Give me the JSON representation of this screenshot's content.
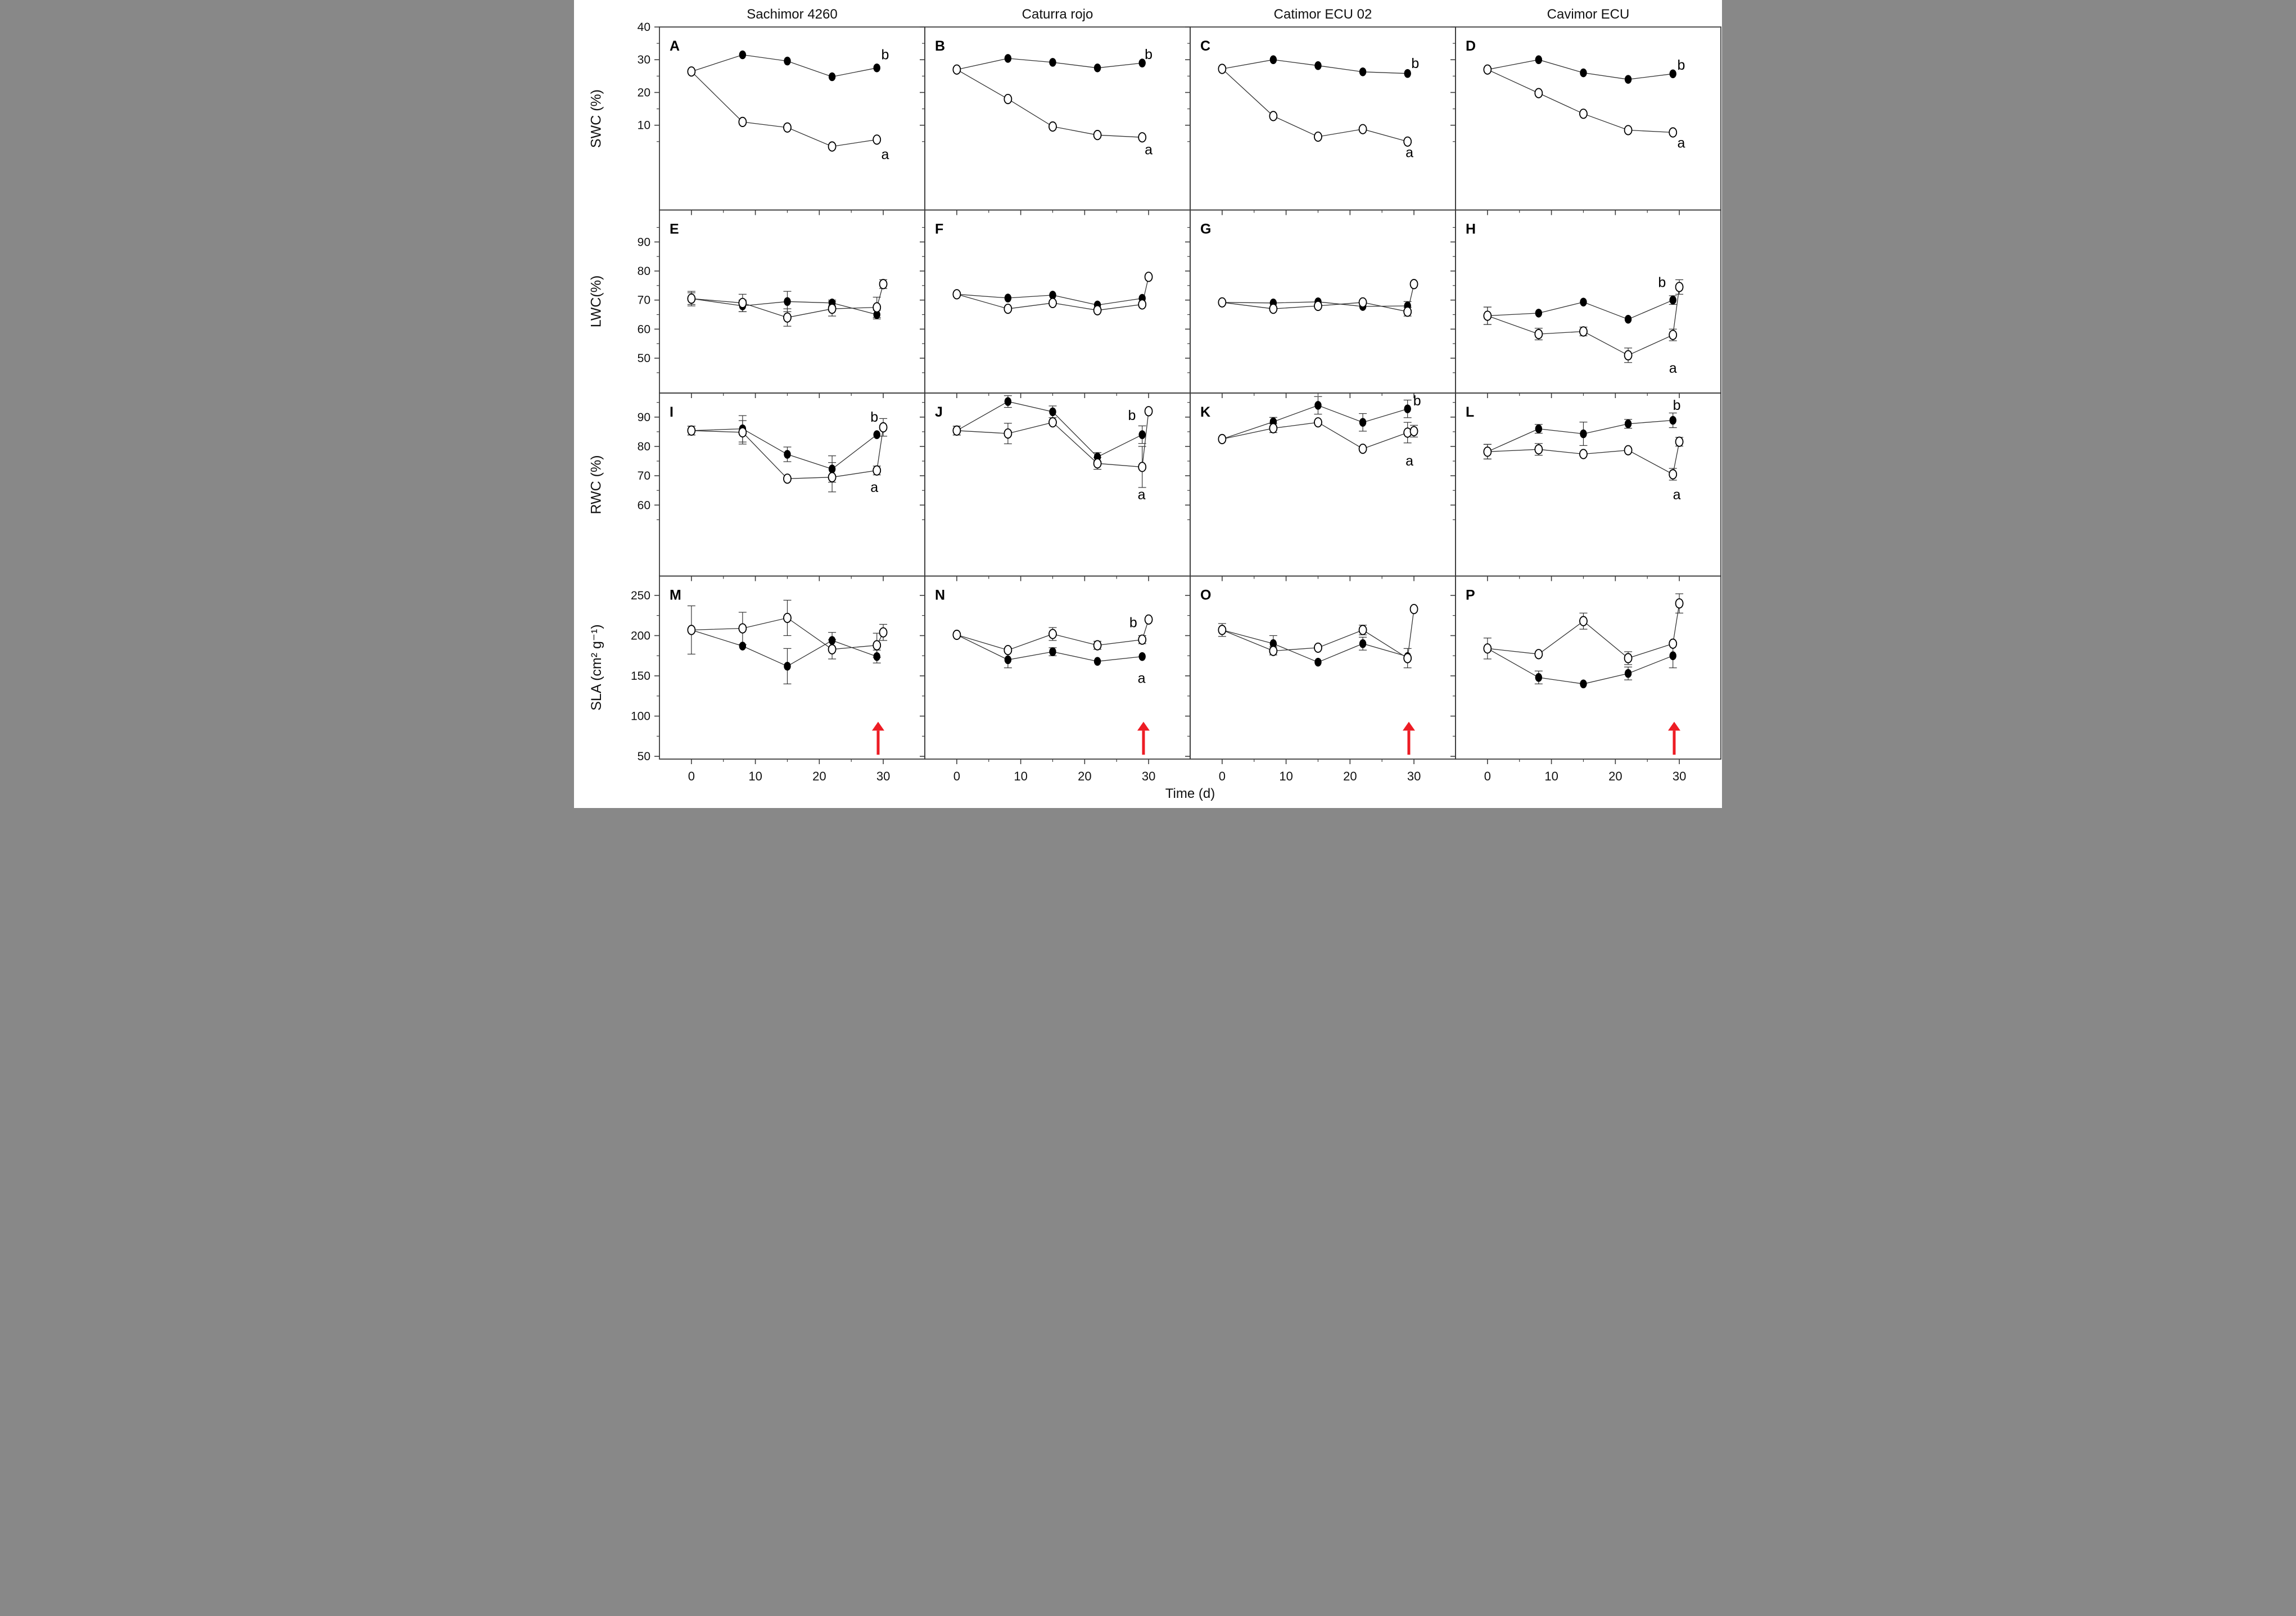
{
  "figure_title": "",
  "xlabel": "Time (d)",
  "column_titles": [
    "Sachimor 4260",
    "Caturra rojo",
    "Catimor ECU 02",
    "Cavimor ECU"
  ],
  "row_axis_labels": [
    "SWC (%)",
    "LWC(%)",
    "RWC (%)",
    "SLA (cm² g⁻¹)"
  ],
  "chart_data": {
    "type": "line",
    "grid": {
      "rows": 4,
      "cols": 4
    },
    "x_days": [
      0,
      8,
      15,
      22,
      29
    ],
    "recovery_day": 30,
    "xticks": [
      0,
      10,
      20,
      30
    ],
    "x_minor_ticks": [
      5,
      15,
      25
    ],
    "xlim": [
      -5,
      36.5
    ],
    "xlabel": "Time (d)",
    "legend": "none visible; filled circles = upper series, open circles = lower series",
    "rows": [
      {
        "label": "SWC (%)",
        "yticks": [
          10,
          20,
          30,
          40
        ],
        "y_minor_ticks": [
          5,
          15,
          25,
          35
        ],
        "ylim": [
          -15.9,
          40
        ]
      },
      {
        "label": "LWC(%)",
        "yticks": [
          50,
          60,
          70,
          80,
          90
        ],
        "y_minor_ticks": [
          45,
          55,
          65,
          75,
          85,
          95
        ],
        "ylim": [
          38,
          101
        ]
      },
      {
        "label": "RWC (%)",
        "yticks": [
          60,
          70,
          80,
          90
        ],
        "y_minor_ticks": [
          55,
          65,
          75,
          85,
          95
        ],
        "ylim": [
          35.8,
          98.2
        ]
      },
      {
        "label": "SLA (cm² g⁻¹)",
        "yticks": [
          50,
          100,
          150,
          200,
          250
        ],
        "y_minor_ticks": [
          75,
          125,
          175,
          225
        ],
        "ylim": [
          46.6,
          274
        ]
      }
    ],
    "style": {
      "line_color": "#333333",
      "frame_color": "#3c3c3c",
      "filled_marker_color": "#000000",
      "open_marker_fill": "#ffffff",
      "arrow_color": "#ed1c24",
      "background": "#ffffff"
    },
    "panels": [
      {
        "id": "A",
        "row": 0,
        "col": 0,
        "filled": {
          "y": [
            26.4,
            31.5,
            29.6,
            24.8,
            27.5
          ],
          "err": [
            0,
            0,
            0,
            0,
            0
          ]
        },
        "open": {
          "y": [
            26.4,
            11.0,
            9.3,
            3.5,
            5.6
          ],
          "err": [
            0,
            0,
            0,
            0,
            0
          ]
        },
        "letters": [
          {
            "t": "b",
            "x": 30.3,
            "y": 31.5
          },
          {
            "t": "a",
            "x": 30.3,
            "y": 1.0
          }
        ]
      },
      {
        "id": "B",
        "row": 0,
        "col": 1,
        "filled": {
          "y": [
            27.0,
            30.4,
            29.2,
            27.5,
            29.0
          ],
          "err": [
            0,
            0,
            0,
            0,
            0
          ]
        },
        "open": {
          "y": [
            27.0,
            18.0,
            9.6,
            7.0,
            6.3
          ],
          "err": [
            0,
            0,
            0,
            0,
            0
          ]
        },
        "letters": [
          {
            "t": "b",
            "x": 30.0,
            "y": 31.6
          },
          {
            "t": "a",
            "x": 30.0,
            "y": 2.5
          }
        ]
      },
      {
        "id": "C",
        "row": 0,
        "col": 2,
        "filled": {
          "y": [
            27.2,
            30.0,
            28.2,
            26.3,
            25.8
          ],
          "err": [
            0,
            0,
            0,
            0,
            0
          ]
        },
        "open": {
          "y": [
            27.2,
            12.8,
            6.5,
            8.8,
            5.0
          ],
          "err": [
            0,
            0,
            0,
            0,
            0
          ]
        },
        "letters": [
          {
            "t": "b",
            "x": 30.2,
            "y": 28.8
          },
          {
            "t": "a",
            "x": 29.3,
            "y": 1.6
          }
        ]
      },
      {
        "id": "D",
        "row": 0,
        "col": 3,
        "filled": {
          "y": [
            27.0,
            30.0,
            26.0,
            24.0,
            25.7
          ],
          "err": [
            0,
            0,
            0,
            0,
            0
          ]
        },
        "open": {
          "y": [
            27.0,
            19.8,
            13.5,
            8.5,
            7.8
          ],
          "err": [
            0,
            0,
            0,
            0,
            0
          ]
        },
        "letters": [
          {
            "t": "b",
            "x": 30.3,
            "y": 28.3
          },
          {
            "t": "a",
            "x": 30.3,
            "y": 4.5
          }
        ]
      },
      {
        "id": "E",
        "row": 1,
        "col": 0,
        "filled": {
          "y": [
            70.5,
            68.0,
            69.5,
            69.0,
            65.0
          ],
          "err": [
            2,
            2,
            3.5,
            1,
            1.5
          ]
        },
        "open": {
          "y": [
            70.5,
            69.0,
            64.0,
            67.0,
            67.5
          ],
          "err": [
            2.5,
            3,
            3,
            2.5,
            3.5
          ],
          "recovery": {
            "y": 75.5,
            "err": 1.5
          }
        },
        "letters": []
      },
      {
        "id": "F",
        "row": 1,
        "col": 1,
        "filled": {
          "y": [
            72.0,
            70.7,
            71.7,
            68.3,
            70.6
          ],
          "err": [
            0,
            0,
            0,
            0,
            0
          ]
        },
        "open": {
          "y": [
            72.0,
            67.0,
            69.0,
            66.5,
            68.5
          ],
          "err": [
            0,
            0,
            0,
            0,
            0
          ],
          "recovery": {
            "y": 78.0,
            "err": 0
          }
        },
        "letters": []
      },
      {
        "id": "G",
        "row": 1,
        "col": 2,
        "filled": {
          "y": [
            69.2,
            69.0,
            69.4,
            67.8,
            68.0
          ],
          "err": [
            0,
            0,
            0,
            0,
            1.5
          ]
        },
        "open": {
          "y": [
            69.2,
            67.0,
            68.0,
            69.2,
            66.0
          ],
          "err": [
            0,
            0,
            0,
            0,
            1.5
          ],
          "recovery": {
            "y": 75.5,
            "err": 0
          }
        },
        "letters": []
      },
      {
        "id": "H",
        "row": 1,
        "col": 3,
        "filled": {
          "y": [
            64.6,
            65.5,
            69.3,
            63.4,
            70.0
          ],
          "err": [
            3,
            0,
            0,
            0,
            1.5
          ]
        },
        "open": {
          "y": [
            64.6,
            58.3,
            59.2,
            51.0,
            58.0
          ],
          "err": [
            3,
            2,
            1.5,
            2.5,
            2
          ],
          "recovery": {
            "y": 74.5,
            "err": 2.5
          }
        },
        "letters": [
          {
            "t": "b",
            "x": 27.3,
            "y": 76.0
          },
          {
            "t": "a",
            "x": 29.0,
            "y": 46.5
          }
        ]
      },
      {
        "id": "I",
        "row": 2,
        "col": 0,
        "filled": {
          "y": [
            85.4,
            86.0,
            77.3,
            72.3,
            84.0
          ],
          "err": [
            1.5,
            4.5,
            2.5,
            4.5,
            0
          ]
        },
        "open": {
          "y": [
            85.4,
            84.8,
            69.0,
            69.5,
            71.8
          ],
          "err": [
            1.5,
            4,
            0,
            5,
            1.5
          ],
          "recovery": {
            "y": 86.5,
            "err": 3
          }
        },
        "letters": [
          {
            "t": "b",
            "x": 28.6,
            "y": 90.0
          },
          {
            "t": "a",
            "x": 28.6,
            "y": 66.0
          }
        ]
      },
      {
        "id": "J",
        "row": 2,
        "col": 1,
        "filled": {
          "y": [
            85.4,
            95.3,
            91.8,
            76.4,
            84.0
          ],
          "err": [
            1.5,
            2,
            2,
            1.5,
            3
          ]
        },
        "open": {
          "y": [
            85.4,
            84.4,
            88.2,
            74.2,
            73.0
          ],
          "err": [
            1.5,
            3.5,
            0,
            2,
            7
          ],
          "recovery": {
            "y": 92.0,
            "err": 0
          }
        },
        "letters": [
          {
            "t": "b",
            "x": 27.4,
            "y": 90.5
          },
          {
            "t": "a",
            "x": 28.9,
            "y": 63.5
          }
        ]
      },
      {
        "id": "K",
        "row": 2,
        "col": 2,
        "filled": {
          "y": [
            82.5,
            88.4,
            94.0,
            88.2,
            92.8
          ],
          "err": [
            0,
            1.5,
            3,
            3,
            3
          ]
        },
        "open": {
          "y": [
            82.5,
            86.2,
            88.2,
            79.2,
            84.7
          ],
          "err": [
            0,
            1.5,
            0,
            0,
            3.5
          ],
          "recovery": {
            "y": 85.2,
            "err": 2
          }
        },
        "letters": [
          {
            "t": "b",
            "x": 30.5,
            "y": 95.5
          },
          {
            "t": "a",
            "x": 29.3,
            "y": 75.0
          }
        ]
      },
      {
        "id": "L",
        "row": 2,
        "col": 3,
        "filled": {
          "y": [
            78.2,
            86.0,
            84.3,
            87.7,
            88.9
          ],
          "err": [
            2.5,
            1.5,
            4,
            1.5,
            2.5
          ]
        },
        "open": {
          "y": [
            78.2,
            79.0,
            77.4,
            78.7,
            70.5
          ],
          "err": [
            2.5,
            2,
            0,
            0,
            2
          ],
          "recovery": {
            "y": 81.6,
            "err": 1.5
          }
        },
        "letters": [
          {
            "t": "b",
            "x": 29.6,
            "y": 94.0
          },
          {
            "t": "a",
            "x": 29.6,
            "y": 63.5
          }
        ]
      },
      {
        "id": "M",
        "row": 3,
        "col": 0,
        "filled": {
          "y": [
            207,
            187,
            162,
            194,
            174
          ],
          "err": [
            0,
            0,
            22,
            10,
            8
          ]
        },
        "open": {
          "y": [
            207,
            209,
            222,
            183,
            188
          ],
          "err": [
            30,
            20,
            22,
            12,
            15
          ],
          "recovery": {
            "y": 204,
            "err": 10
          }
        },
        "letters": [],
        "arrow_x": 29.2
      },
      {
        "id": "N",
        "row": 3,
        "col": 1,
        "filled": {
          "y": [
            201,
            170,
            180,
            168,
            174
          ],
          "err": [
            0,
            10,
            5,
            0,
            0
          ]
        },
        "open": {
          "y": [
            201,
            182,
            202,
            188,
            195
          ],
          "err": [
            0,
            0,
            8,
            5,
            5
          ],
          "recovery": {
            "y": 220,
            "err": 0
          }
        },
        "letters": [
          {
            "t": "b",
            "x": 27.6,
            "y": 216
          },
          {
            "t": "a",
            "x": 28.9,
            "y": 147
          }
        ],
        "arrow_x": 29.2
      },
      {
        "id": "O",
        "row": 3,
        "col": 2,
        "filled": {
          "y": [
            207,
            190,
            167,
            190,
            174
          ],
          "err": [
            0,
            10,
            0,
            8,
            0
          ]
        },
        "open": {
          "y": [
            207,
            181,
            185,
            207,
            172
          ],
          "err": [
            8,
            5,
            0,
            6,
            12
          ],
          "recovery": {
            "y": 233,
            "err": 0
          }
        },
        "letters": [],
        "arrow_x": 29.2
      },
      {
        "id": "P",
        "row": 3,
        "col": 3,
        "filled": {
          "y": [
            184,
            148,
            140,
            153,
            175
          ],
          "err": [
            0,
            8,
            0,
            8,
            15
          ]
        },
        "open": {
          "y": [
            184,
            177,
            218,
            172,
            190
          ],
          "err": [
            13,
            0,
            10,
            8,
            0
          ],
          "recovery": {
            "y": 240,
            "err": 12
          }
        },
        "letters": [],
        "arrow_x": 29.2
      }
    ]
  }
}
